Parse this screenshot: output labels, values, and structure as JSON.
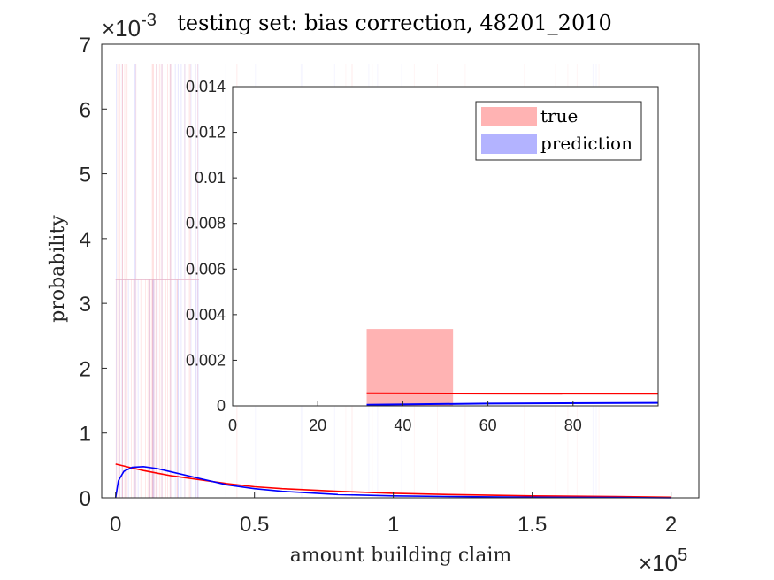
{
  "chart_data": [
    {
      "type": "line",
      "title": "testing set: bias correction, 48201_2010",
      "xlabel": "amount building claim",
      "ylabel": "probability",
      "xlim": [
        -0.05,
        2.1
      ],
      "ylim": [
        0,
        7
      ],
      "x_ticks": [
        0,
        0.5,
        1,
        1.5,
        2
      ],
      "x_tick_labels": [
        "0",
        "0.5",
        "1",
        "1.5",
        "2"
      ],
      "y_ticks": [
        0,
        1,
        2,
        3,
        4,
        5,
        6,
        7
      ],
      "y_tick_labels": [
        "0",
        "1",
        "2",
        "3",
        "4",
        "5",
        "6",
        "7"
      ],
      "x_multiplier": "×10",
      "x_multiplier_exp": "5",
      "y_multiplier": "×10",
      "y_multiplier_exp": "-3",
      "x_units_note": "x in units of 1e5, y in units of 1e-3",
      "histogram_bands": {
        "true_max": 6.7,
        "prediction_max": 6.7,
        "mid_band": 3.37,
        "band_x_range": [
          0,
          0.3
        ]
      },
      "series": [
        {
          "name": "true",
          "color": "#ff0000",
          "x": [
            0,
            0.05,
            0.1,
            0.15,
            0.2,
            0.3,
            0.4,
            0.5,
            0.6,
            0.8,
            1.0,
            1.2,
            1.5,
            1.8,
            2.0
          ],
          "y": [
            0.52,
            0.47,
            0.42,
            0.38,
            0.34,
            0.28,
            0.22,
            0.17,
            0.14,
            0.1,
            0.07,
            0.05,
            0.03,
            0.02,
            0.01
          ]
        },
        {
          "name": "prediction",
          "color": "#0000ff",
          "x": [
            0,
            0.01,
            0.03,
            0.06,
            0.1,
            0.15,
            0.2,
            0.3,
            0.4,
            0.5,
            0.6,
            0.8,
            1.0,
            1.2,
            1.5,
            1.8,
            2.0
          ],
          "y": [
            0.0,
            0.26,
            0.41,
            0.47,
            0.48,
            0.45,
            0.4,
            0.3,
            0.2,
            0.14,
            0.1,
            0.05,
            0.03,
            0.02,
            0.01,
            0.005,
            0.0
          ]
        }
      ]
    },
    {
      "type": "bar",
      "title": "inset",
      "xlim": [
        0,
        100
      ],
      "ylim": [
        0,
        0.014
      ],
      "x_ticks": [
        0,
        20,
        40,
        60,
        80
      ],
      "x_tick_labels": [
        "0",
        "20",
        "40",
        "60",
        "80"
      ],
      "y_ticks": [
        0,
        0.002,
        0.004,
        0.006,
        0.008,
        0.01,
        0.012,
        0.014
      ],
      "y_tick_labels": [
        "0",
        "0.002",
        "0.004",
        "0.006",
        "0.008",
        "0.01",
        "0.012",
        "0.014"
      ],
      "bars": [
        {
          "series": "true",
          "x_start": 31.5,
          "x_end": 51.8,
          "value": 0.00337,
          "color": "#ffb3b3"
        }
      ],
      "lines": [
        {
          "name": "true",
          "color": "#ff0000",
          "x": [
            31.5,
            60,
            100
          ],
          "y": [
            0.00055,
            0.00054,
            0.00053
          ]
        },
        {
          "name": "prediction",
          "color": "#0000ff",
          "x": [
            31.5,
            60,
            100
          ],
          "y": [
            5e-05,
            0.0001,
            0.00013
          ]
        }
      ],
      "legend": {
        "position": "top-right",
        "entries": [
          {
            "label": "true",
            "color": "#ffb3b3"
          },
          {
            "label": "prediction",
            "color": "#b3b3ff"
          }
        ]
      }
    }
  ]
}
